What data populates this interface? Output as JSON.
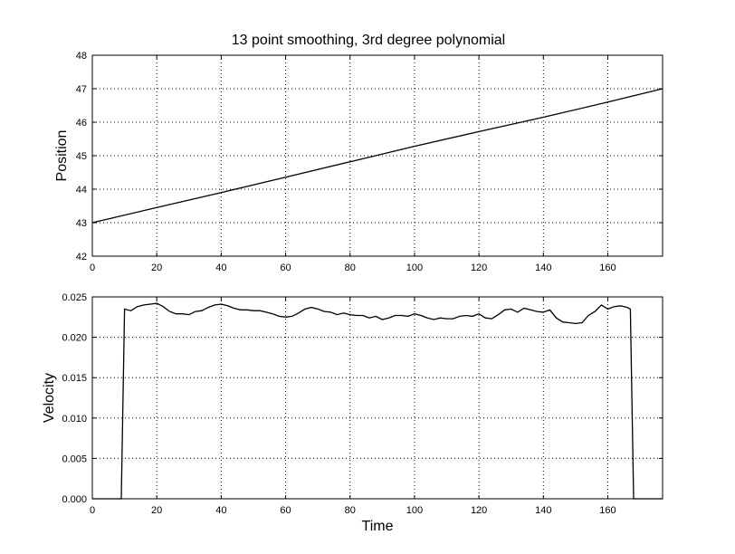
{
  "chart_data": {
    "title": "13 point smoothing, 3rd degree polynomial",
    "panels": [
      {
        "type": "line",
        "xlabel": "",
        "ylabel": "Position",
        "xlim": [
          0,
          177
        ],
        "ylim": [
          42,
          48
        ],
        "xticks": [
          "0",
          "20",
          "40",
          "60",
          "80",
          "100",
          "120",
          "140",
          "160"
        ],
        "yticks": [
          "42",
          "43",
          "44",
          "45",
          "46",
          "47",
          "48"
        ],
        "grid": true,
        "series": [
          {
            "x": [
              0,
              20,
              40,
              60,
              80,
              100,
              120,
              140,
              160,
              177
            ],
            "y": [
              43.0,
              43.45,
              43.9,
              44.36,
              44.82,
              45.28,
              45.72,
              46.15,
              46.6,
              47.0
            ]
          }
        ]
      },
      {
        "type": "line",
        "xlabel": "Time",
        "ylabel": "Velocity",
        "xlim": [
          0,
          177
        ],
        "ylim": [
          0,
          0.025
        ],
        "xticks": [
          "0",
          "20",
          "40",
          "60",
          "80",
          "100",
          "120",
          "140",
          "160"
        ],
        "yticks": [
          "0.000",
          "0.005",
          "0.010",
          "0.015",
          "0.020",
          "0.025"
        ],
        "grid": true,
        "series": [
          {
            "x": [
              0,
              9,
              10,
              12,
              14,
              16,
              18,
              20,
              22,
              24,
              26,
              28,
              30,
              32,
              34,
              36,
              38,
              40,
              42,
              44,
              46,
              48,
              50,
              52,
              54,
              56,
              58,
              60,
              62,
              64,
              66,
              68,
              70,
              72,
              74,
              76,
              78,
              80,
              82,
              84,
              86,
              88,
              90,
              92,
              94,
              96,
              98,
              100,
              102,
              104,
              106,
              108,
              110,
              112,
              114,
              116,
              118,
              120,
              122,
              124,
              126,
              128,
              130,
              132,
              134,
              136,
              138,
              140,
              142,
              144,
              146,
              148,
              150,
              152,
              154,
              156,
              158,
              160,
              162,
              164,
              166,
              167,
              168,
              177
            ],
            "y": [
              0.0,
              0.0,
              0.0235,
              0.0233,
              0.0238,
              0.024,
              0.0241,
              0.0242,
              0.0238,
              0.0232,
              0.0229,
              0.0229,
              0.0228,
              0.0232,
              0.0233,
              0.0237,
              0.024,
              0.0241,
              0.0239,
              0.0236,
              0.0234,
              0.0234,
              0.0233,
              0.0233,
              0.0231,
              0.0229,
              0.0226,
              0.0225,
              0.0226,
              0.023,
              0.0235,
              0.0237,
              0.0235,
              0.0232,
              0.0231,
              0.0228,
              0.023,
              0.0228,
              0.0227,
              0.0227,
              0.0224,
              0.0226,
              0.0222,
              0.0224,
              0.0227,
              0.0227,
              0.0226,
              0.0229,
              0.0227,
              0.0224,
              0.0222,
              0.0224,
              0.0223,
              0.0223,
              0.0226,
              0.0227,
              0.0226,
              0.0229,
              0.0224,
              0.0223,
              0.0228,
              0.0234,
              0.0235,
              0.0231,
              0.0236,
              0.0234,
              0.0232,
              0.0231,
              0.0234,
              0.0224,
              0.0219,
              0.0218,
              0.0217,
              0.0218,
              0.0227,
              0.0232,
              0.024,
              0.0235,
              0.0238,
              0.0239,
              0.0237,
              0.0235,
              0.0,
              0.0
            ]
          }
        ]
      }
    ]
  }
}
